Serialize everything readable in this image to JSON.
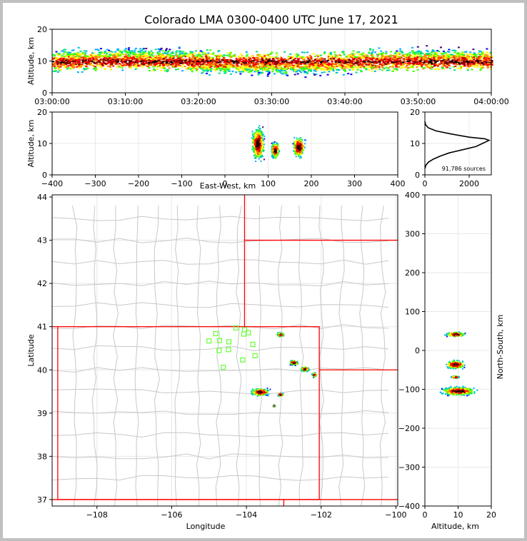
{
  "figure": {
    "title": "Colorado LMA 0300-0400 UTC June 17, 2021"
  },
  "chart_data": [
    {
      "id": "altitude_time",
      "type": "heatmap",
      "xlabel": "",
      "ylabel": "Altitude, km",
      "xlim": [
        "03:00:00",
        "04:00:00"
      ],
      "ylim": [
        0,
        20
      ],
      "xticks": [
        "03:00:00",
        "03:10:00",
        "03:20:00",
        "03:30:00",
        "03:40:00",
        "03:50:00",
        "04:00:00"
      ],
      "yticks": [
        0,
        10,
        20
      ],
      "band": {
        "low_km": 3,
        "high_km": 14,
        "core_km": 10
      }
    },
    {
      "id": "altitude_eastwest",
      "type": "heatmap",
      "xlabel": "East-West, km",
      "ylabel": "Altitude, km",
      "xlim": [
        -400,
        400
      ],
      "ylim": [
        0,
        20
      ],
      "xticks": [
        -400,
        -300,
        -200,
        -100,
        0,
        100,
        200,
        300,
        400
      ],
      "yticks": [
        0,
        10,
        20
      ],
      "clusters": [
        {
          "x_km": 75,
          "z_km": 10,
          "dx_km": 18,
          "dz_km": 8
        },
        {
          "x_km": 115,
          "z_km": 8,
          "dx_km": 12,
          "dz_km": 4
        },
        {
          "x_km": 170,
          "z_km": 9,
          "dx_km": 18,
          "dz_km": 5
        }
      ]
    },
    {
      "id": "altitude_histogram",
      "type": "line",
      "xlim": [
        0,
        3000
      ],
      "ylim": [
        0,
        20
      ],
      "xticks": [
        0,
        2000
      ],
      "yticks": [
        0,
        10,
        20
      ],
      "annotation": "91,786 sources",
      "x": [
        0,
        40,
        150,
        380,
        700,
        1100,
        1700,
        2300,
        2600,
        2750,
        2900,
        2700,
        2000,
        1200,
        500,
        150,
        30,
        0
      ],
      "y": [
        2,
        3,
        4,
        5,
        6,
        7,
        8,
        9,
        10,
        10.5,
        11,
        11.5,
        12,
        13,
        14,
        15,
        16,
        17
      ]
    },
    {
      "id": "plan_view",
      "type": "scatter",
      "xlabel": "Longitude",
      "ylabel": "Latitude",
      "xlim": [
        -109.2,
        -99.95
      ],
      "ylim": [
        36.85,
        44.05
      ],
      "xticks": [
        -108,
        -106,
        -104,
        -102,
        -100
      ],
      "yticks": [
        37,
        38,
        39,
        40,
        41,
        42,
        43,
        44
      ],
      "stations": [
        [
          -104.82,
          40.84
        ],
        [
          -105.0,
          40.67
        ],
        [
          -104.72,
          40.68
        ],
        [
          -104.47,
          40.65
        ],
        [
          -104.28,
          40.97
        ],
        [
          -104.07,
          40.83
        ],
        [
          -103.95,
          40.86
        ],
        [
          -104.05,
          40.93
        ],
        [
          -103.83,
          40.59
        ],
        [
          -104.48,
          40.47
        ],
        [
          -104.73,
          40.45
        ],
        [
          -104.1,
          40.23
        ],
        [
          -103.77,
          40.33
        ],
        [
          -104.62,
          40.06
        ]
      ],
      "storms": [
        {
          "lon": -103.1,
          "lat": 40.83,
          "rlon": 0.13,
          "rlat": 0.06
        },
        {
          "lon": -103.65,
          "lat": 39.5,
          "rlon": 0.32,
          "rlat": 0.1
        },
        {
          "lon": -102.75,
          "lat": 40.18,
          "rlon": 0.16,
          "rlat": 0.07
        },
        {
          "lon": -102.45,
          "lat": 40.03,
          "rlon": 0.15,
          "rlat": 0.07
        },
        {
          "lon": -102.2,
          "lat": 39.9,
          "rlon": 0.08,
          "rlat": 0.06
        },
        {
          "lon": -103.1,
          "lat": 39.44,
          "rlon": 0.1,
          "rlat": 0.05
        },
        {
          "lon": -103.27,
          "lat": 39.18,
          "rlon": 0.04,
          "rlat": 0.03
        }
      ]
    },
    {
      "id": "northsouth_altitude",
      "type": "heatmap",
      "xlabel": "Altitude, km",
      "ylabel": "North-South, km",
      "xlim": [
        0,
        20
      ],
      "ylim": [
        -400,
        400
      ],
      "xticks": [
        0,
        10,
        20
      ],
      "yticks": [
        -400,
        -300,
        -200,
        -100,
        0,
        100,
        200,
        300,
        400
      ],
      "clusters": [
        {
          "z_km": 9,
          "y_km": 43,
          "dz_km": 5,
          "dy_km": 8
        },
        {
          "z_km": 9,
          "y_km": -35,
          "dz_km": 5,
          "dy_km": 15
        },
        {
          "z_km": 10,
          "y_km": -103,
          "dz_km": 9,
          "dy_km": 15
        },
        {
          "z_km": 9,
          "y_km": -67,
          "dz_km": 2,
          "dy_km": 4
        }
      ]
    }
  ],
  "colors": {
    "density": [
      "#4b0082",
      "#0000ff",
      "#00b0ff",
      "#00e080",
      "#40ff00",
      "#ffff00",
      "#ff8000",
      "#ff0000",
      "#800000",
      "#000000"
    ],
    "state_line": "#ff0000",
    "county_line": "#c8c8c8",
    "station": "#66ff33",
    "grid": "#e8e8e8"
  }
}
